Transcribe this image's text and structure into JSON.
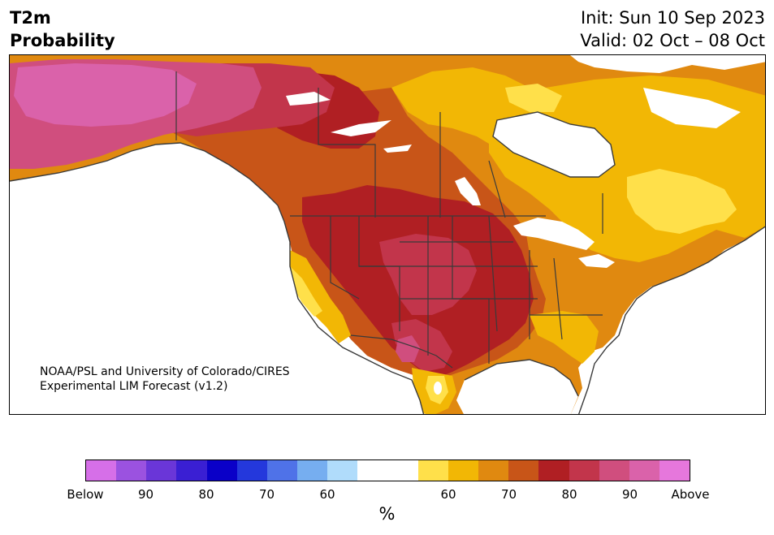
{
  "title": {
    "line1": "T2m",
    "line2": "Probability"
  },
  "init": {
    "line1": "Init: Sun 10 Sep 2023",
    "line2": "Valid: 02 Oct – 08 Oct"
  },
  "credit": {
    "line1": "NOAA/PSL and University of Colorado/CIRES",
    "line2": "Experimental LIM Forecast (v1.2)"
  },
  "colorbar": {
    "unit": "%",
    "colors": [
      "#d66fe8",
      "#9b52e0",
      "#6a36d8",
      "#3a1fd3",
      "#0a00c8",
      "#2438dc",
      "#4f72e8",
      "#76aef0",
      "#b0dcfb",
      "#ffffff",
      "#ffffff",
      "#ffe04a",
      "#f2b705",
      "#e08910",
      "#c85518",
      "#b01f23",
      "#c2354b",
      "#d04e7e",
      "#da62aa",
      "#e677dc"
    ],
    "ticks": [
      {
        "label": "Below",
        "frac": 0.0
      },
      {
        "label": "90",
        "frac": 0.1
      },
      {
        "label": "80",
        "frac": 0.2
      },
      {
        "label": "70",
        "frac": 0.3
      },
      {
        "label": "60",
        "frac": 0.4
      },
      {
        "label": "60",
        "frac": 0.6
      },
      {
        "label": "70",
        "frac": 0.7
      },
      {
        "label": "80",
        "frac": 0.8
      },
      {
        "label": "90",
        "frac": 0.9
      },
      {
        "label": "Above",
        "frac": 1.0
      }
    ]
  },
  "map_colors": {
    "ocean": "#ffffff",
    "p60": "#ffe04a",
    "p65": "#f2b705",
    "p70": "#e08910",
    "p75": "#c85518",
    "p80": "#b01f23",
    "p85": "#c2354b",
    "p90": "#d04e7e",
    "p95": "#da62aa",
    "border": "#3a3a3a"
  }
}
